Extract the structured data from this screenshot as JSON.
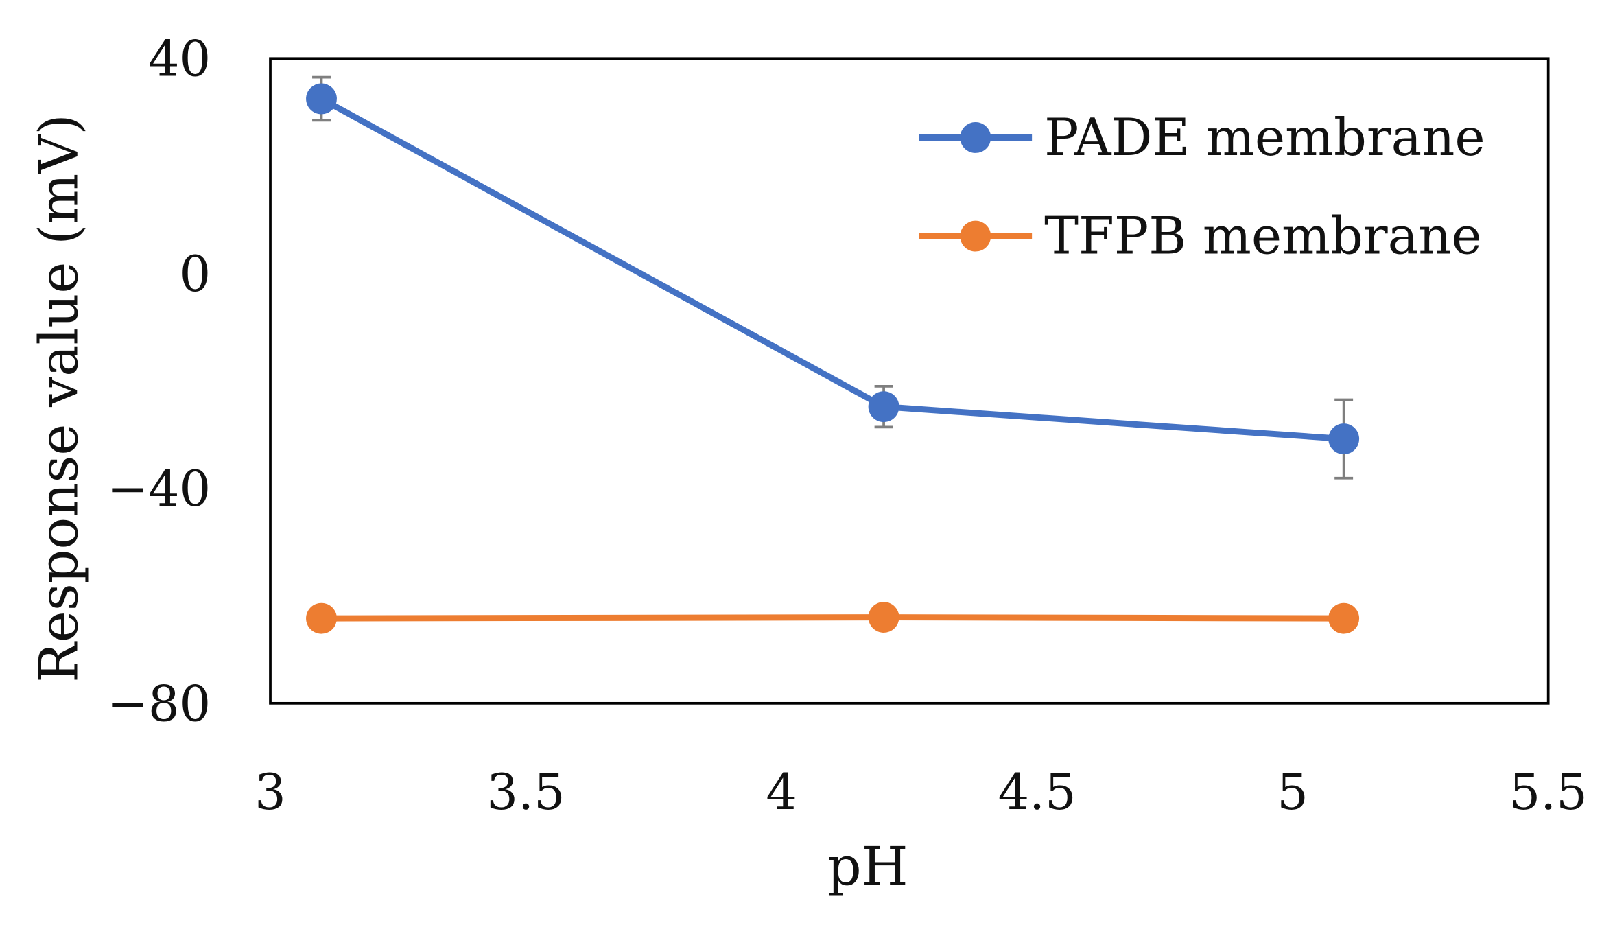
{
  "chart_data": {
    "type": "line",
    "title": "",
    "xlabel": "pH",
    "ylabel": "Response value (mV)",
    "xlim": [
      3,
      5.5
    ],
    "ylim": [
      -80,
      40
    ],
    "x_ticks": [
      "3",
      "3.5",
      "4",
      "4.5",
      "5",
      "5.5"
    ],
    "y_ticks": [
      "40",
      "0",
      "−40",
      "−80"
    ],
    "x_tick_values": [
      3,
      3.5,
      4,
      4.5,
      5,
      5.5
    ],
    "y_tick_values": [
      40,
      0,
      -40,
      -80
    ],
    "grid": false,
    "legend_position": "top-right",
    "x": [
      3.1,
      4.2,
      5.1
    ],
    "series": [
      {
        "name": "PADE membrane",
        "color": "#4472C4",
        "values": [
          32.5,
          -24.8,
          -30.8
        ],
        "error": [
          4.0,
          3.8,
          7.3
        ]
      },
      {
        "name": "TFPB membrane",
        "color": "#ED7D31",
        "values": [
          -64.2,
          -64.0,
          -64.2
        ],
        "error": null
      }
    ]
  }
}
